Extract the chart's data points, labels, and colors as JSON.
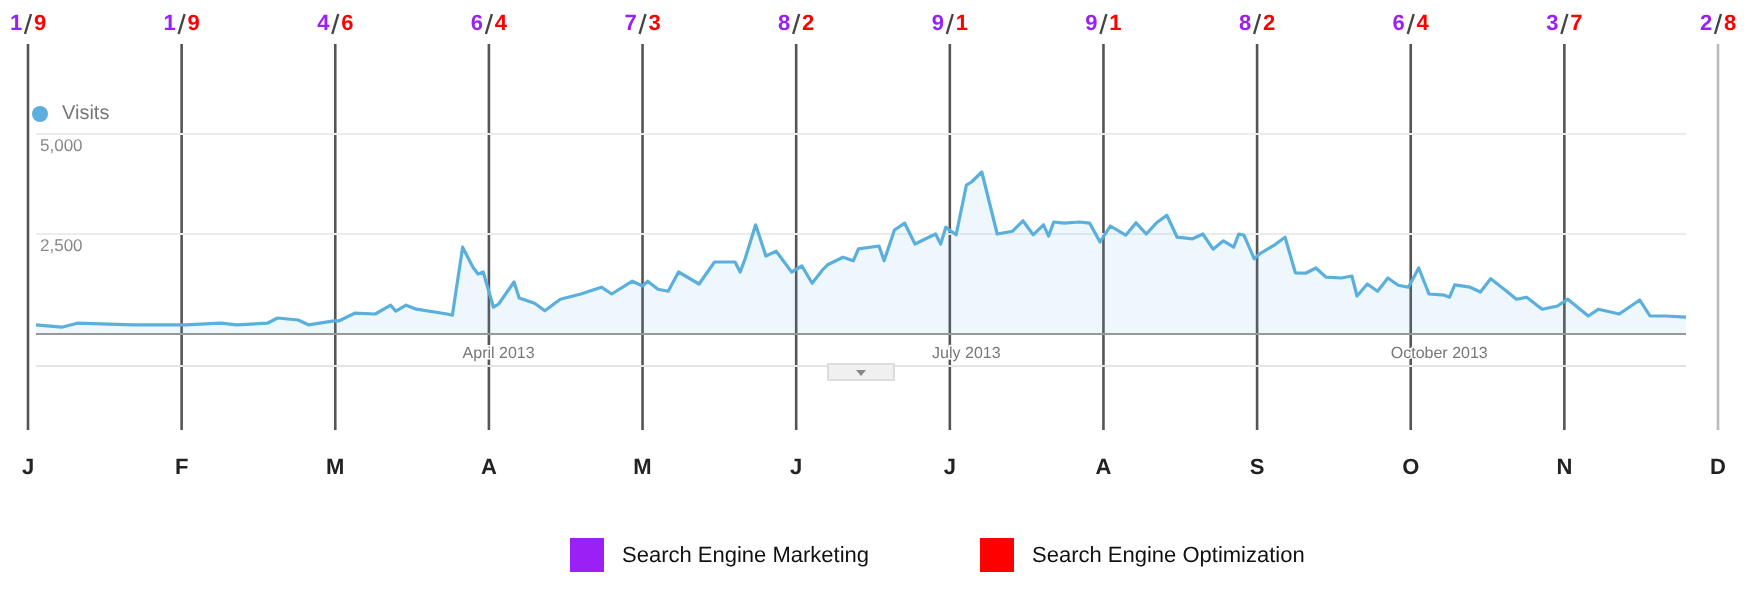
{
  "chart_data": [
    {
      "type": "area",
      "legend": "top left",
      "grid": "y",
      "series": [
        {
          "name": "Visits",
          "color": "#5aafdc",
          "x": [
            "2013-01-01",
            "2013-01-06",
            "2013-01-09",
            "2013-01-20",
            "2013-01-30",
            "2013-02-06",
            "2013-02-09",
            "2013-02-15",
            "2013-02-17",
            "2013-02-21",
            "2013-02-23",
            "2013-02-28",
            "2013-03-01",
            "2013-03-04",
            "2013-03-08",
            "2013-03-11",
            "2013-03-12",
            "2013-03-14",
            "2013-03-16",
            "2013-03-22",
            "2013-03-23",
            "2013-03-25",
            "2013-03-27",
            "2013-03-28",
            "2013-03-29",
            "2013-03-31",
            "2013-04-01",
            "2013-04-04",
            "2013-04-05",
            "2013-04-08",
            "2013-04-10",
            "2013-04-13",
            "2013-04-17",
            "2013-04-21",
            "2013-04-23",
            "2013-04-27",
            "2013-04-29",
            "2013-04-30",
            "2013-05-02",
            "2013-05-04",
            "2013-05-06",
            "2013-05-10",
            "2013-05-13",
            "2013-05-17",
            "2013-05-18",
            "2013-05-19",
            "2013-05-21",
            "2013-05-23",
            "2013-05-25",
            "2013-05-28",
            "2013-05-30",
            "2013-06-01",
            "2013-06-03",
            "2013-06-04",
            "2013-06-07",
            "2013-06-09",
            "2013-06-10",
            "2013-06-14",
            "2013-06-15",
            "2013-06-17",
            "2013-06-19",
            "2013-06-21",
            "2013-06-25",
            "2013-06-26",
            "2013-06-27",
            "2013-06-29",
            "2013-07-01",
            "2013-07-02",
            "2013-07-04",
            "2013-07-07",
            "2013-07-10",
            "2013-07-12",
            "2013-07-14",
            "2013-07-16",
            "2013-07-17",
            "2013-07-18",
            "2013-07-20",
            "2013-07-23",
            "2013-07-25",
            "2013-07-27",
            "2013-07-29",
            "2013-08-01",
            "2013-08-03",
            "2013-08-05",
            "2013-08-07",
            "2013-08-09",
            "2013-08-11",
            "2013-08-14",
            "2013-08-16",
            "2013-08-18",
            "2013-08-20",
            "2013-08-22",
            "2013-08-23",
            "2013-08-24",
            "2013-08-26",
            "2013-08-27",
            "2013-08-30",
            "2013-09-01",
            "2013-09-03",
            "2013-09-05",
            "2013-09-07",
            "2013-09-09",
            "2013-09-12",
            "2013-09-14",
            "2013-09-15",
            "2013-09-17",
            "2013-09-19",
            "2013-09-21",
            "2013-09-23",
            "2013-09-25",
            "2013-09-27",
            "2013-09-29",
            "2013-10-02",
            "2013-10-03",
            "2013-10-04",
            "2013-10-07",
            "2013-10-09",
            "2013-10-11",
            "2013-10-14",
            "2013-10-16",
            "2013-10-18",
            "2013-10-21",
            "2013-10-24",
            "2013-10-26",
            "2013-10-30",
            "2013-11-01",
            "2013-11-05",
            "2013-11-09",
            "2013-11-11",
            "2013-11-14",
            "2013-11-18"
          ],
          "values": [
            230,
            170,
            270,
            230,
            230,
            270,
            230,
            270,
            400,
            350,
            230,
            330,
            330,
            520,
            500,
            720,
            570,
            720,
            620,
            500,
            470,
            2170,
            1670,
            1500,
            1550,
            670,
            750,
            1300,
            900,
            770,
            580,
            870,
            1000,
            1170,
            1000,
            1320,
            1200,
            1320,
            1120,
            1070,
            1550,
            1250,
            1800,
            1800,
            1550,
            1900,
            2730,
            1950,
            2070,
            1550,
            1700,
            1270,
            1600,
            1730,
            1920,
            1830,
            2130,
            2200,
            1830,
            2600,
            2770,
            2250,
            2500,
            2250,
            2670,
            2480,
            3720,
            3800,
            4050,
            2500,
            2570,
            2830,
            2480,
            2730,
            2450,
            2800,
            2770,
            2800,
            2770,
            2300,
            2700,
            2470,
            2780,
            2500,
            2780,
            2970,
            2420,
            2380,
            2500,
            2120,
            2330,
            2170,
            2500,
            2470,
            1880,
            2000,
            2230,
            2420,
            1530,
            1520,
            1650,
            1420,
            1400,
            1450,
            950,
            1250,
            1070,
            1400,
            1220,
            1170,
            1650,
            1000,
            970,
            920,
            1230,
            1170,
            1050,
            1380,
            1080,
            870,
            920,
            620,
            700,
            870,
            450,
            620,
            500,
            850,
            450,
            450,
            420
          ]
        }
      ],
      "xlim": [
        "2013-01-01",
        "2013-11-18"
      ],
      "xticks": [
        {
          "value": "2013-04-01",
          "label": "April 2013"
        },
        {
          "value": "2013-07-01",
          "label": "July 2013"
        },
        {
          "value": "2013-10-01",
          "label": "October 2013"
        }
      ],
      "ylim": [
        0,
        5000
      ],
      "yticks": [
        {
          "value": 2500,
          "label": "2,500"
        },
        {
          "value": 5000,
          "label": "5,000"
        }
      ]
    },
    {
      "type": "other",
      "legend": "bottom",
      "data_labels": true,
      "categories": [
        "J",
        "F",
        "M",
        "A",
        "M",
        "J",
        "J",
        "A",
        "S",
        "O",
        "N",
        "D"
      ],
      "series": [
        {
          "name": "Search Engine Marketing",
          "color": "#9b20f5",
          "values": [
            1,
            1,
            4,
            6,
            7,
            8,
            9,
            9,
            8,
            6,
            3,
            2
          ]
        },
        {
          "name": "Search Engine Optimization",
          "color": "#ff0000",
          "values": [
            9,
            9,
            6,
            4,
            3,
            2,
            1,
            1,
            2,
            4,
            7,
            8
          ]
        }
      ]
    }
  ]
}
